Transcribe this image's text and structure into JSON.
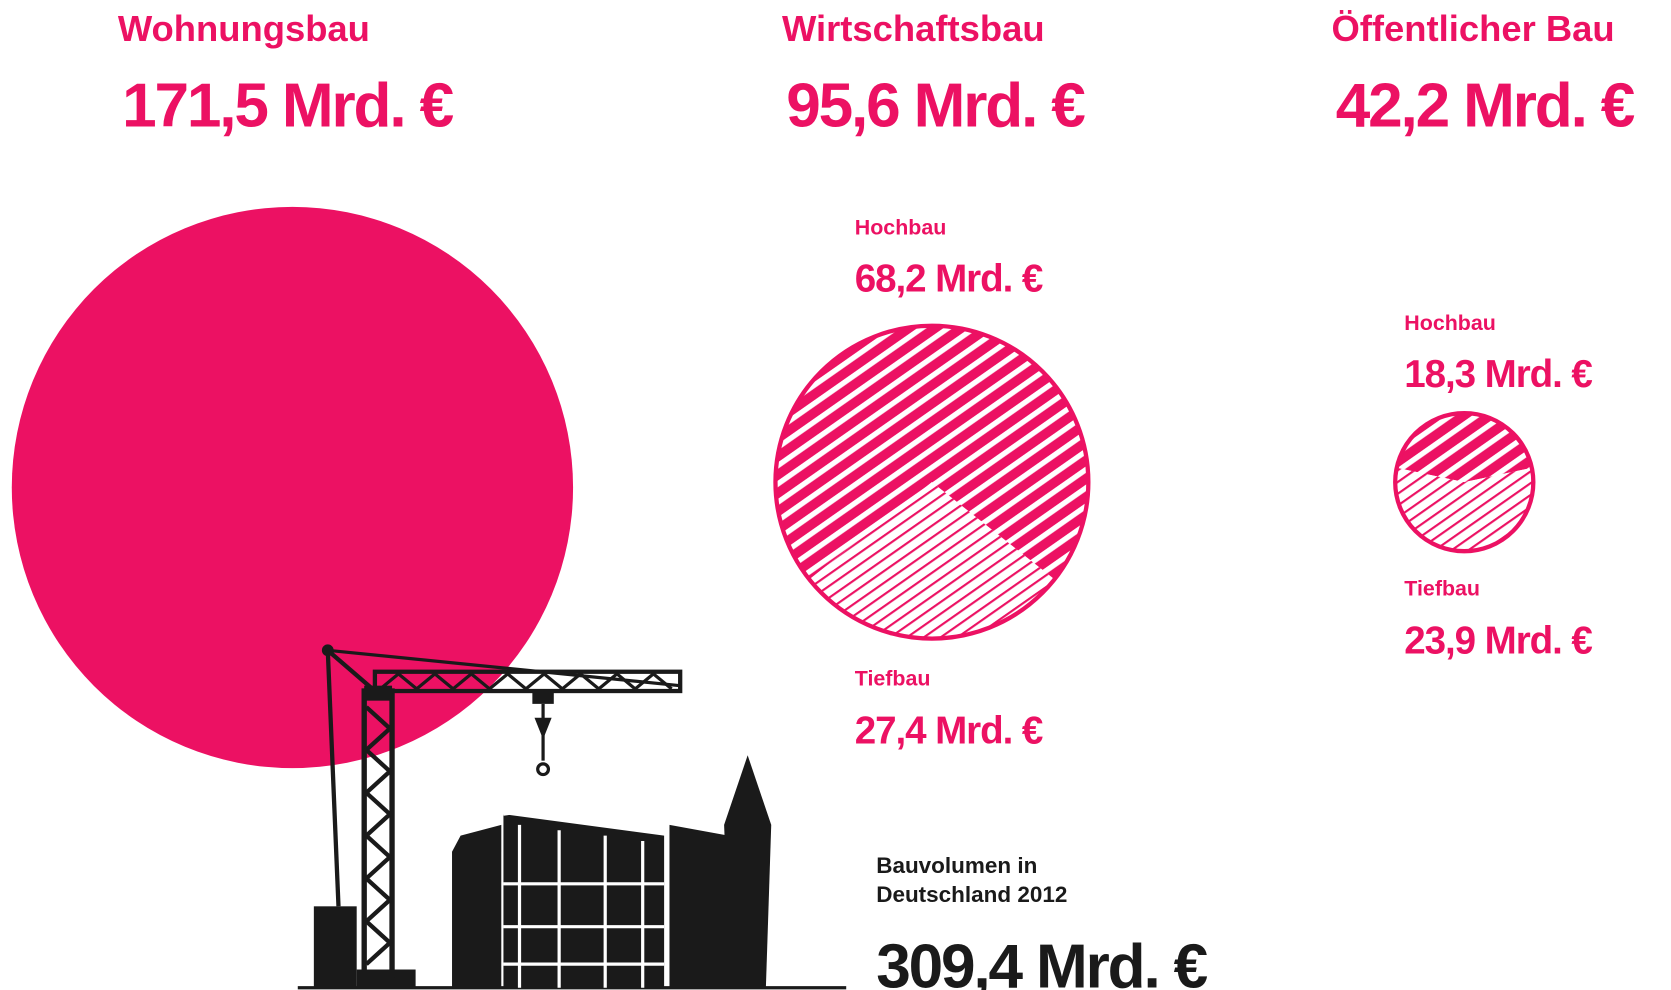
{
  "chart_data": {
    "type": "pie",
    "color": "#ec1163",
    "groups": [
      {
        "name": "Wohnungsbau",
        "value": 171.5,
        "value_label": "171,5 Mrd. €"
      },
      {
        "name": "Wirtschaftsbau",
        "value": 95.6,
        "value_label": "95,6 Mrd. €",
        "parts": [
          {
            "name": "Hochbau",
            "value": 68.2,
            "value_label": "68,2 Mrd. €"
          },
          {
            "name": "Tiefbau",
            "value": 27.4,
            "value_label": "27,4 Mrd. €"
          }
        ]
      },
      {
        "name": "Öffentlicher Bau",
        "value": 42.2,
        "value_label": "42,2 Mrd. €",
        "parts": [
          {
            "name": "Hochbau",
            "value": 18.3,
            "value_label": "18,3 Mrd. €"
          },
          {
            "name": "Tiefbau",
            "value": 23.9,
            "value_label": "23,9 Mrd. €"
          }
        ]
      }
    ],
    "total": {
      "label": [
        "Bauvolumen in",
        "Deutschland 2012"
      ],
      "value": 309.4,
      "value_label": "309,4 Mrd. €"
    }
  }
}
